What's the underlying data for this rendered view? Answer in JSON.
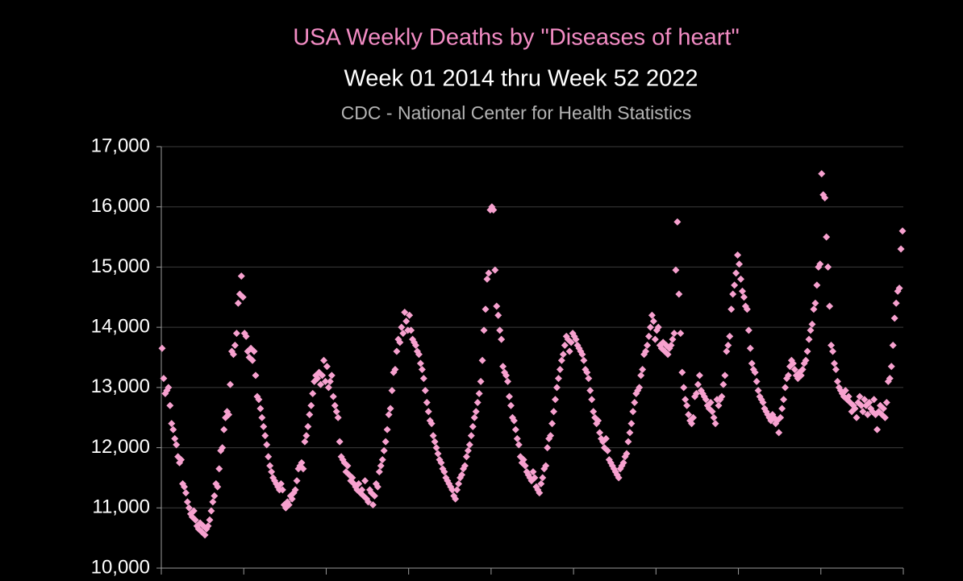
{
  "chart_data": {
    "type": "scatter",
    "title": "USA Weekly Deaths by \"Diseases of heart\"",
    "subtitle": "Week 01 2014 thru Week 52 2022",
    "source": "CDC - National Center for Health Statistics",
    "color": "#f7a1cf",
    "grid": true,
    "ylim": [
      10000,
      17000
    ],
    "yticks": [
      {
        "value": 10000,
        "label": "10,000"
      },
      {
        "value": 11000,
        "label": "11,000"
      },
      {
        "value": 12000,
        "label": "12,000"
      },
      {
        "value": 13000,
        "label": "13,000"
      },
      {
        "value": 14000,
        "label": "14,000"
      },
      {
        "value": 15000,
        "label": "15,000"
      },
      {
        "value": 16000,
        "label": "16,000"
      },
      {
        "value": 17000,
        "label": "17,000"
      }
    ],
    "values": [
      13650,
      13150,
      12900,
      12950,
      13000,
      12700,
      12400,
      12300,
      12150,
      12050,
      11850,
      11750,
      11800,
      11400,
      11350,
      11250,
      11100,
      11000,
      10900,
      10850,
      10950,
      10800,
      10700,
      10650,
      10750,
      10600,
      10700,
      10550,
      10650,
      10700,
      10800,
      10950,
      11100,
      11200,
      11400,
      11350,
      11650,
      11950,
      12000,
      12300,
      12500,
      12600,
      12550,
      13050,
      13600,
      13550,
      13700,
      13900,
      14400,
      14550,
      14850,
      14500,
      13900,
      13850,
      13600,
      13500,
      13650,
      13450,
      13600,
      13200,
      12850,
      12800,
      12650,
      12500,
      12350,
      12200,
      12050,
      11850,
      11700,
      11600,
      11500,
      11450,
      11400,
      11350,
      11300,
      11400,
      11300,
      11050,
      11000,
      11100,
      11050,
      11200,
      11150,
      11250,
      11300,
      11450,
      11650,
      11700,
      11750,
      11650,
      12100,
      12200,
      12350,
      12550,
      12700,
      12900,
      13100,
      13200,
      13150,
      13250,
      13050,
      13200,
      13450,
      13100,
      13350,
      13000,
      13100,
      13200,
      12850,
      12700,
      12600,
      12500,
      12100,
      11850,
      11800,
      11750,
      11600,
      11700,
      11550,
      11450,
      11500,
      11400,
      11350,
      11300,
      11400,
      11250,
      11300,
      11200,
      11450,
      11150,
      11100,
      11300,
      11250,
      11050,
      11200,
      11400,
      11350,
      11600,
      11700,
      11800,
      11950,
      12100,
      12300,
      12550,
      12650,
      12950,
      13250,
      13300,
      13600,
      13800,
      13750,
      14000,
      13900,
      14250,
      14100,
      13950,
      14200,
      13950,
      13800,
      13750,
      13700,
      13600,
      13550,
      13400,
      13300,
      13150,
      12950,
      12750,
      12600,
      12450,
      12400,
      12200,
      12100,
      12000,
      11900,
      11800,
      11750,
      11650,
      11600,
      11500,
      11450,
      11400,
      11350,
      11300,
      11200,
      11150,
      11300,
      11400,
      11500,
      11550,
      11650,
      11700,
      11850,
      11950,
      12050,
      12200,
      12350,
      12500,
      12600,
      12750,
      12900,
      13100,
      13450,
      13950,
      14300,
      14800,
      14900,
      15950,
      16000,
      15950,
      14950,
      14350,
      14200,
      13950,
      13800,
      13350,
      13250,
      13200,
      13100,
      12850,
      12700,
      12500,
      12450,
      12300,
      12150,
      12050,
      11850,
      11750,
      11800,
      11700,
      11600,
      11550,
      11500,
      11450,
      11600,
      11500,
      11350,
      11300,
      11250,
      11400,
      11500,
      11650,
      11700,
      12000,
      12150,
      12200,
      12400,
      12600,
      12800,
      13000,
      13150,
      13300,
      13450,
      13550,
      13700,
      13850,
      13800,
      13600,
      13750,
      13900,
      13850,
      13800,
      13700,
      13650,
      13600,
      13550,
      13450,
      13300,
      13250,
      13150,
      12950,
      12800,
      12600,
      12500,
      12400,
      12450,
      12250,
      12150,
      12100,
      12000,
      12150,
      11950,
      11800,
      11750,
      11700,
      11650,
      11600,
      11550,
      11500,
      11650,
      11700,
      11750,
      11850,
      11900,
      12100,
      12250,
      12400,
      12600,
      12750,
      12900,
      12950,
      13000,
      13200,
      13300,
      13550,
      13600,
      13700,
      13850,
      14000,
      14200,
      14100,
      13800,
      13950,
      14000,
      13700,
      13650,
      13750,
      13600,
      13700,
      13550,
      13650,
      13700,
      13800,
      13900,
      14950,
      15750,
      14550,
      13900,
      13250,
      13000,
      12800,
      12700,
      12550,
      12450,
      12400,
      12500,
      12850,
      12900,
      13050,
      13200,
      12950,
      12900,
      12850,
      12800,
      12700,
      12650,
      12750,
      12600,
      12500,
      12400,
      12800,
      12700,
      12800,
      12850,
      13050,
      13200,
      13600,
      13700,
      13850,
      14300,
      14550,
      14700,
      14900,
      15200,
      15050,
      14800,
      14600,
      14500,
      14350,
      14300,
      13950,
      13650,
      13400,
      13300,
      13250,
      13100,
      12950,
      12850,
      12800,
      12750,
      12650,
      12600,
      12550,
      12500,
      12450,
      12550,
      12500,
      12400,
      12450,
      12250,
      12500,
      12650,
      12800,
      13000,
      13150,
      13200,
      13350,
      13450,
      13400,
      13300,
      13200,
      13150,
      13250,
      13200,
      13300,
      13400,
      13450,
      13600,
      13800,
      13950,
      14050,
      14300,
      14400,
      14700,
      15000,
      15050,
      16550,
      16200,
      16150,
      15500,
      15000,
      14350,
      13700,
      13600,
      13400,
      13300,
      13100,
      13000,
      12950,
      12900,
      12850,
      12950,
      12800,
      12850,
      12750,
      12600,
      12700,
      12650,
      12500,
      12750,
      12850,
      12700,
      12600,
      12800,
      12700,
      12550,
      12750,
      12650,
      12600,
      12800,
      12550,
      12300,
      12600,
      12700,
      12550,
      12650,
      12500,
      12750,
      13100,
      13150,
      13350,
      13700,
      14150,
      14400,
      14600,
      14650,
      15300,
      15600
    ]
  }
}
